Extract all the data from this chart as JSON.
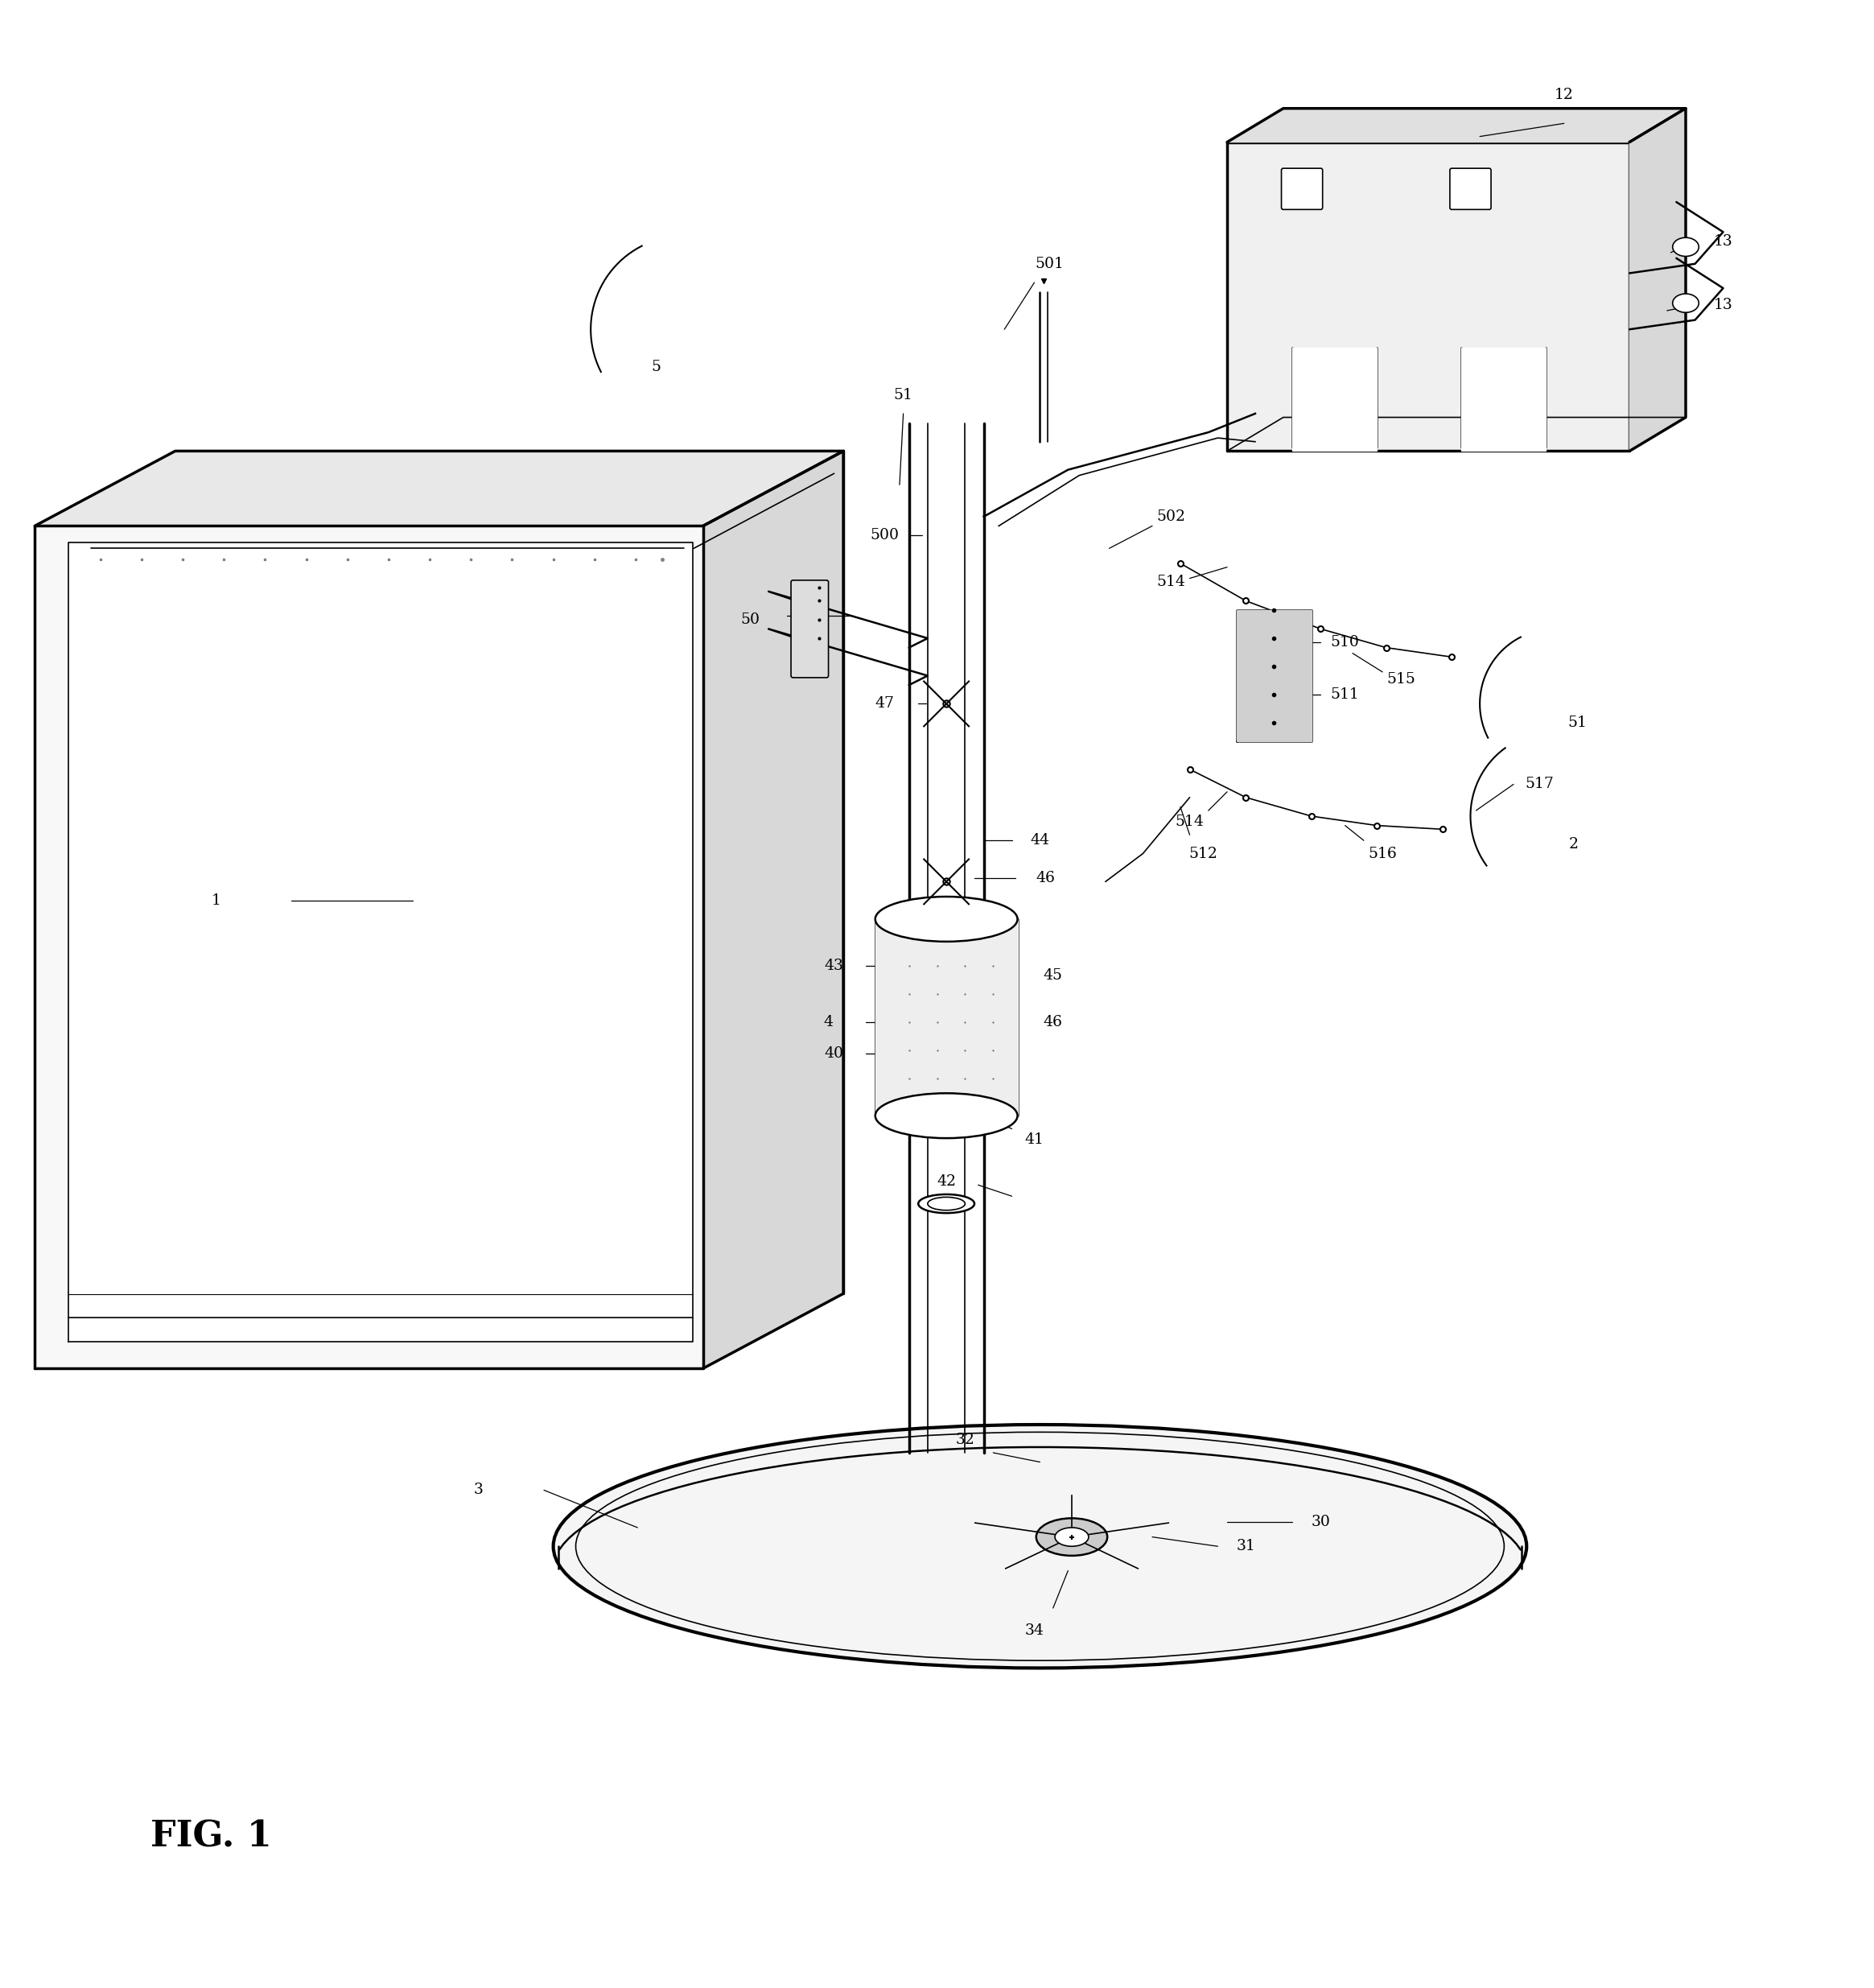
{
  "title": "FIG. 1",
  "bg_color": "#ffffff",
  "line_color": "#000000",
  "fig_width": 23.29,
  "fig_height": 24.7
}
